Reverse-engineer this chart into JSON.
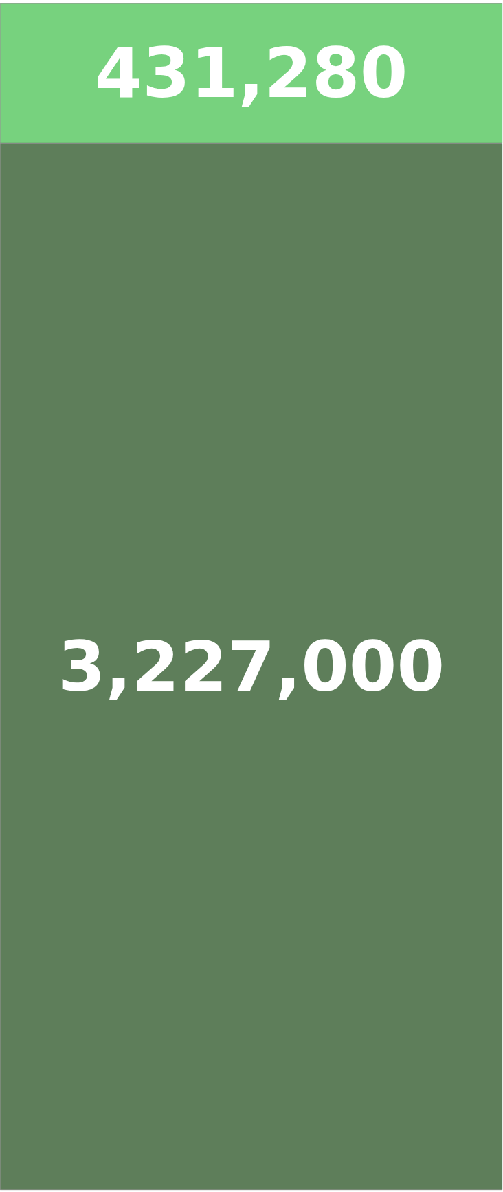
{
  "chart_data": {
    "type": "bar",
    "stacked": true,
    "categories": [
      null
    ],
    "series": [
      {
        "color": "#5e7e5a",
        "values": [
          3227000
        ],
        "value_labels": [
          "3,227,000"
        ]
      },
      {
        "color": "#77d27e",
        "values": [
          431280
        ],
        "value_labels": [
          "431,280"
        ]
      }
    ]
  }
}
